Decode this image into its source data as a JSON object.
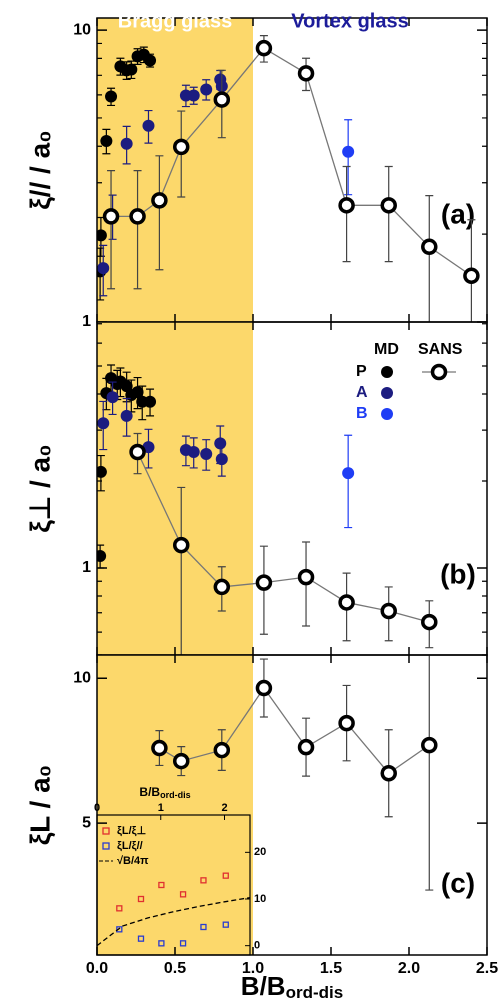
{
  "chart_data": [
    {
      "type": "scatter",
      "log_y": true,
      "xlim": [
        0,
        2.5
      ],
      "ylim": [
        1,
        11
      ],
      "yticks": [
        1,
        10
      ],
      "minor_yticks": [
        2,
        3,
        4,
        5,
        6,
        7,
        8,
        9
      ],
      "y_label": "ξ// / a₀",
      "panel_label": "(a)",
      "regions": [
        {
          "label": "Bragg glass",
          "x_range": [
            0,
            1
          ],
          "color": "#fcd86b",
          "label_color": "#ffffff"
        },
        {
          "label": "Vortex glass",
          "x_range": [
            1,
            2.5
          ],
          "color": null,
          "label_color": "#1c1c9a"
        }
      ],
      "series": [
        {
          "color": "#000000",
          "marker": "filled",
          "x": [
            0.02,
            0.025,
            0.06,
            0.09,
            0.15,
            0.19,
            0.22,
            0.26,
            0.3,
            0.34
          ],
          "values": [
            1.49,
            1.98,
            4.17,
            5.92,
            7.51,
            7.28,
            7.33,
            8.13,
            8.24,
            7.87
          ],
          "errors": [
            0.3,
            0.3,
            0.4,
            0.4,
            0.5,
            0.5,
            0.5,
            0.5,
            0.5,
            0.4
          ]
        },
        {
          "color": "#1c1c80",
          "marker": "filled",
          "x": [
            0.04,
            0.1,
            0.19,
            0.33,
            0.57,
            0.62,
            0.7,
            0.79,
            0.8
          ],
          "values": [
            1.53,
            2.32,
            4.08,
            4.7,
            5.97,
            5.97,
            6.26,
            6.77,
            6.42
          ],
          "errors": [
            0.3,
            0.4,
            0.6,
            0.6,
            0.5,
            0.4,
            0.5,
            0.5,
            0.4
          ]
        },
        {
          "color": "#1f3df5",
          "marker": "filled",
          "x": [
            1.61
          ],
          "values": [
            3.83
          ],
          "errors": [
            1.1
          ]
        },
        {
          "color": "#000000",
          "marker": "open",
          "line": true,
          "x": [
            0.09,
            0.26,
            0.4,
            0.54,
            0.8,
            1.07,
            1.34,
            1.6,
            1.87,
            2.13,
            2.4
          ],
          "values": [
            2.3,
            2.3,
            2.61,
            3.98,
            5.78,
            8.67,
            7.11,
            2.51,
            2.51,
            1.81,
            1.44
          ],
          "errors": [
            1.0,
            1.0,
            1.1,
            1.3,
            1.5,
            0.9,
            0.9,
            0.9,
            0.9,
            0.9,
            0.8
          ]
        }
      ]
    },
    {
      "type": "scatter",
      "log_y": true,
      "xlim": [
        0,
        2.5
      ],
      "ylim": [
        0.5,
        7.1
      ],
      "yticks": [
        1
      ],
      "minor_yticks": [
        0.5,
        0.6,
        0.7,
        0.8,
        0.9,
        2,
        3,
        4,
        5,
        6,
        7
      ],
      "y_label": "ξ⊥ / a₀",
      "panel_label": "(b)",
      "legend": {
        "header": "MD",
        "corner": "top-right"
      },
      "series": [
        {
          "name": "P",
          "color": "#000000",
          "marker": "filled",
          "x": [
            0.02,
            0.025,
            0.06,
            0.09,
            0.13,
            0.15,
            0.19,
            0.22,
            0.26,
            0.29,
            0.34
          ],
          "values": [
            1.1,
            2.15,
            4.03,
            4.54,
            4.33,
            4.42,
            4.26,
            3.97,
            4.06,
            3.76,
            3.76
          ],
          "errors": [
            0.1,
            0.3,
            0.5,
            0.5,
            0.5,
            0.5,
            0.5,
            0.5,
            0.5,
            0.5,
            0.4
          ]
        },
        {
          "name": "A",
          "color": "#1c1c80",
          "marker": "filled",
          "x": [
            0.04,
            0.1,
            0.19,
            0.33,
            0.57,
            0.62,
            0.7,
            0.79,
            0.8
          ],
          "values": [
            3.17,
            3.9,
            3.36,
            2.62,
            2.56,
            2.52,
            2.48,
            2.7,
            2.38
          ],
          "errors": [
            0.6,
            0.5,
            0.5,
            0.4,
            0.3,
            0.3,
            0.3,
            0.4,
            0.3
          ]
        },
        {
          "name": "B",
          "color": "#1f3df5",
          "marker": "filled",
          "x": [
            1.61
          ],
          "values": [
            2.13
          ],
          "errors": [
            0.75
          ]
        },
        {
          "name": "SANS",
          "color": "#000000",
          "marker": "open",
          "line": true,
          "x": [
            0.26,
            0.54,
            0.8,
            1.07,
            1.34,
            1.6,
            1.87,
            2.13
          ],
          "values": [
            2.52,
            1.2,
            0.86,
            0.89,
            0.93,
            0.76,
            0.71,
            0.65
          ],
          "errors": [
            0.4,
            0.7,
            0.15,
            0.3,
            0.3,
            0.2,
            0.15,
            0.12
          ]
        }
      ]
    },
    {
      "type": "scatter",
      "log_y": false,
      "xlim": [
        0,
        2.5
      ],
      "ylim": [
        0.45,
        10.8
      ],
      "yticks": [
        5,
        10
      ],
      "xticks": [
        {
          "value": 0,
          "label": "0.0"
        },
        0.5,
        {
          "value": 1,
          "label": "1.0"
        },
        1.5,
        {
          "value": 2,
          "label": "2.0"
        },
        2.5
      ],
      "x_label": "B/B",
      "x_label_sub": "ord-dis",
      "y_label": "ξL / a₀",
      "panel_label": "(c)",
      "series": [
        {
          "color": "#000000",
          "marker": "open",
          "line": true,
          "x": [
            0.4,
            0.54,
            0.8,
            1.07,
            1.34,
            1.6,
            1.87,
            2.13
          ],
          "values": [
            7.59,
            7.14,
            7.52,
            9.66,
            7.62,
            8.45,
            6.72,
            7.69
          ],
          "errors": [
            0.6,
            0.5,
            0.7,
            1.0,
            1.0,
            1.3,
            1.5,
            5.0
          ]
        }
      ]
    },
    {
      "type": "scatter",
      "log_y": false,
      "xlim": [
        0,
        2.4
      ],
      "ylim": [
        -2,
        28
      ],
      "xticks": [
        0,
        1,
        2
      ],
      "yticks": [
        0,
        10,
        20
      ],
      "x_label": "B/B",
      "x_label_sub": "ord-dis",
      "series": [
        {
          "name": "ξL/ξ⊥",
          "color": "#e03030",
          "marker": "square",
          "x": [
            0.35,
            0.69,
            1.01,
            1.35,
            1.67,
            2.02
          ],
          "values": [
            8,
            10,
            13,
            11,
            14,
            15
          ]
        },
        {
          "name": "ξL/ξ//",
          "color": "#2a3cd0",
          "marker": "square",
          "x": [
            0.35,
            0.69,
            1.01,
            1.35,
            1.67,
            2.02
          ],
          "values": [
            3.5,
            1.5,
            0.5,
            0.5,
            4,
            4.5
          ]
        },
        {
          "name": "√B/4π",
          "color": "#000000",
          "marker": "none",
          "line": true,
          "dash": true,
          "x": [
            0,
            0.4,
            0.8,
            1.2,
            1.6,
            2.0,
            2.4
          ],
          "values": [
            0,
            4.2,
            5.95,
            7.28,
            8.41,
            9.4,
            10.3
          ]
        }
      ]
    }
  ]
}
